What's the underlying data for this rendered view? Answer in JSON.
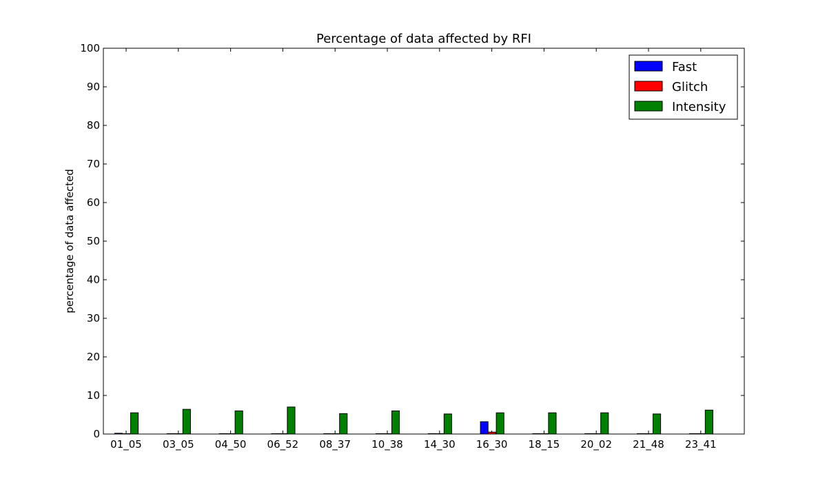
{
  "chart_data": {
    "type": "bar",
    "title": "Percentage of data affected by RFI",
    "xlabel": "",
    "ylabel": "percentage of data affected",
    "ylim": [
      0,
      100
    ],
    "yticks": [
      0,
      10,
      20,
      30,
      40,
      50,
      60,
      70,
      80,
      90,
      100
    ],
    "grid": false,
    "legend_position": "top-right",
    "categories": [
      "01_05",
      "03_05",
      "04_50",
      "06_52",
      "08_37",
      "10_38",
      "14_30",
      "16_30",
      "18_15",
      "20_02",
      "21_48",
      "23_41"
    ],
    "series": [
      {
        "name": "Fast",
        "color": "#0000ff",
        "values": [
          0.2,
          0.1,
          0.1,
          0.1,
          0.1,
          0.1,
          0.1,
          3.2,
          0.1,
          0.1,
          0.1,
          0.1
        ]
      },
      {
        "name": "Glitch",
        "color": "#ff0000",
        "values": [
          0.1,
          0.1,
          0.1,
          0.1,
          0.1,
          0.1,
          0.1,
          0.5,
          0.1,
          0.1,
          0.1,
          0.1
        ]
      },
      {
        "name": "Intensity",
        "color": "#008000",
        "values": [
          5.5,
          6.4,
          6.0,
          7.0,
          5.3,
          6.0,
          5.2,
          5.5,
          5.5,
          5.5,
          5.2,
          6.2
        ]
      }
    ]
  }
}
